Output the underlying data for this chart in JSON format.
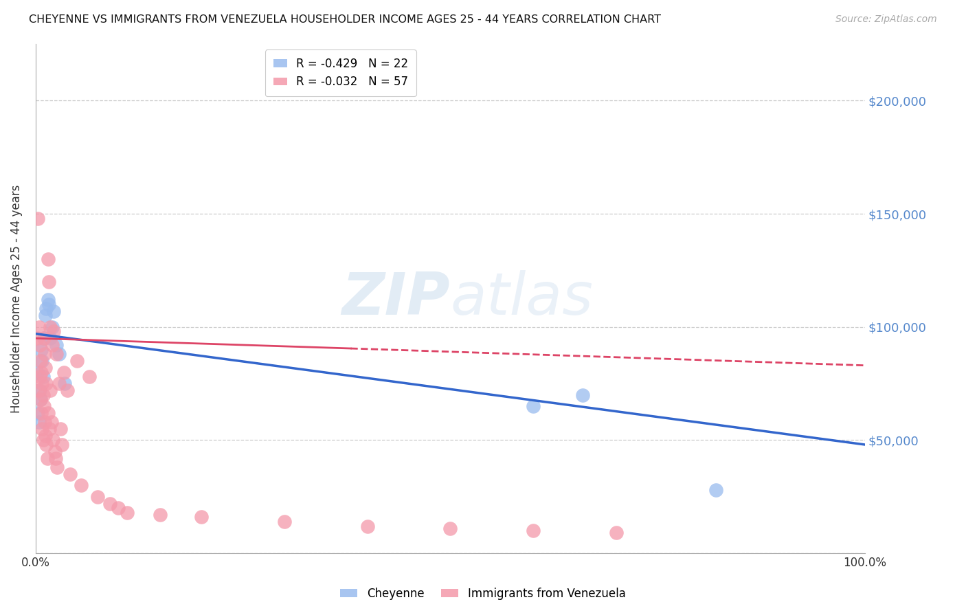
{
  "title": "CHEYENNE VS IMMIGRANTS FROM VENEZUELA HOUSEHOLDER INCOME AGES 25 - 44 YEARS CORRELATION CHART",
  "source": "Source: ZipAtlas.com",
  "ylabel": "Householder Income Ages 25 - 44 years",
  "bg_color": "#ffffff",
  "grid_color": "#cccccc",
  "cheyenne_color": "#99bbee",
  "venezuela_color": "#f499aa",
  "cheyenne_line_color": "#3366cc",
  "venezuela_line_color": "#dd4466",
  "cheyenne_R": -0.429,
  "cheyenne_N": 22,
  "venezuela_R": -0.032,
  "venezuela_N": 57,
  "ylim": [
    0,
    225000
  ],
  "xlim": [
    0.0,
    1.0
  ],
  "yticks": [
    0,
    50000,
    100000,
    150000,
    200000
  ],
  "right_labels": [
    "$50,000",
    "$100,000",
    "$150,000",
    "$200,000"
  ],
  "cheyenne_x": [
    0.002,
    0.003,
    0.004,
    0.005,
    0.006,
    0.007,
    0.008,
    0.009,
    0.01,
    0.012,
    0.013,
    0.015,
    0.016,
    0.018,
    0.02,
    0.022,
    0.025,
    0.028,
    0.035,
    0.6,
    0.66,
    0.82
  ],
  "cheyenne_y": [
    80000,
    62000,
    58000,
    72000,
    68000,
    90000,
    85000,
    78000,
    95000,
    105000,
    108000,
    112000,
    110000,
    95000,
    100000,
    107000,
    92000,
    88000,
    75000,
    65000,
    70000,
    28000
  ],
  "venezuela_x": [
    0.002,
    0.003,
    0.004,
    0.004,
    0.005,
    0.005,
    0.006,
    0.006,
    0.007,
    0.007,
    0.008,
    0.008,
    0.009,
    0.009,
    0.01,
    0.01,
    0.011,
    0.011,
    0.012,
    0.012,
    0.013,
    0.013,
    0.014,
    0.015,
    0.015,
    0.016,
    0.017,
    0.018,
    0.018,
    0.019,
    0.02,
    0.021,
    0.022,
    0.023,
    0.024,
    0.025,
    0.026,
    0.028,
    0.03,
    0.032,
    0.034,
    0.038,
    0.042,
    0.05,
    0.055,
    0.065,
    0.075,
    0.09,
    0.1,
    0.11,
    0.15,
    0.2,
    0.3,
    0.4,
    0.5,
    0.6,
    0.7
  ],
  "venezuela_y": [
    95000,
    148000,
    100000,
    72000,
    92000,
    78000,
    85000,
    68000,
    80000,
    62000,
    75000,
    55000,
    70000,
    50000,
    95000,
    65000,
    88000,
    58000,
    82000,
    52000,
    75000,
    48000,
    42000,
    130000,
    62000,
    120000,
    55000,
    100000,
    72000,
    58000,
    92000,
    50000,
    98000,
    45000,
    42000,
    88000,
    38000,
    75000,
    55000,
    48000,
    80000,
    72000,
    35000,
    85000,
    30000,
    78000,
    25000,
    22000,
    20000,
    18000,
    17000,
    16000,
    14000,
    12000,
    11000,
    10000,
    9000
  ]
}
